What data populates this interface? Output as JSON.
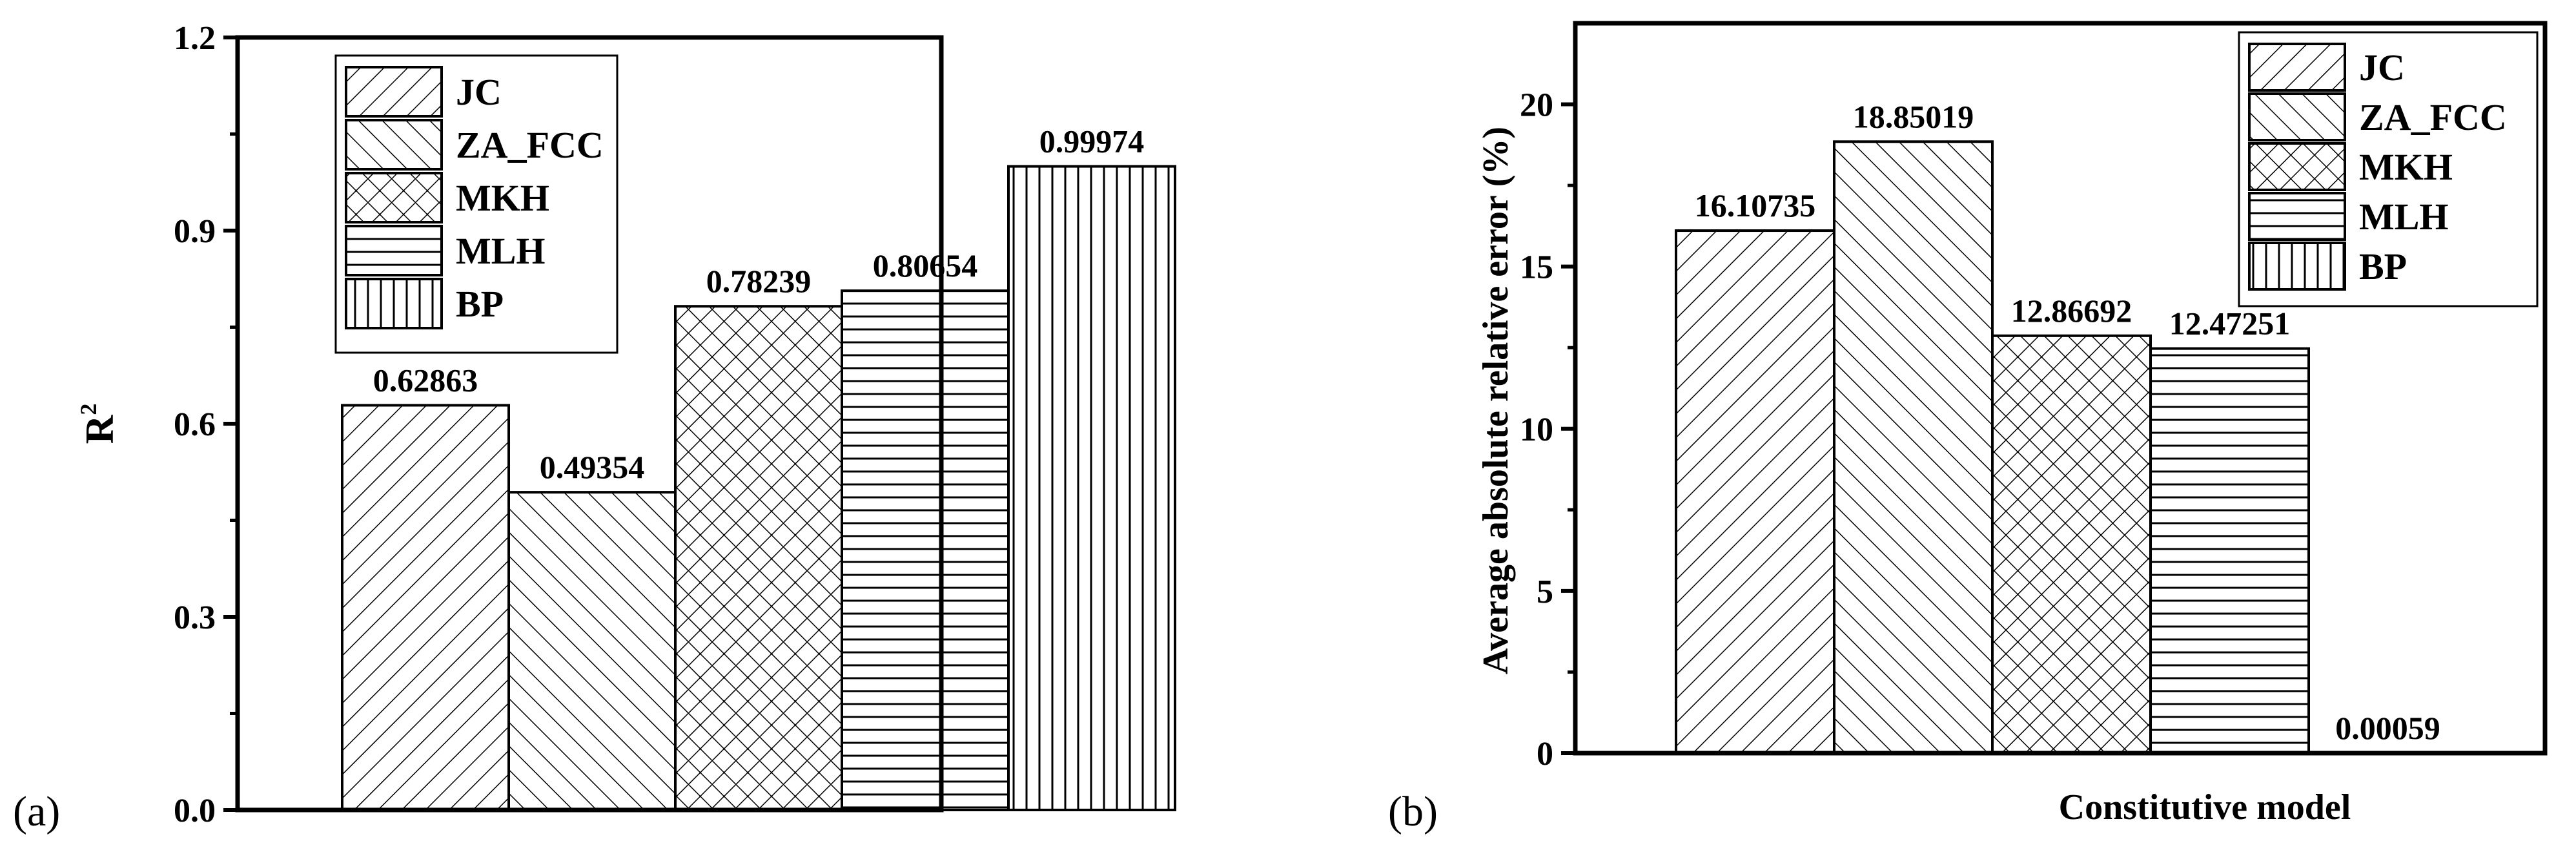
{
  "chart_data": [
    {
      "panel": "(a)",
      "type": "bar",
      "ylabel": "R",
      "ylabel_superscript": "2",
      "xlabel": "",
      "ylim": [
        0,
        1.2
      ],
      "yticks": [
        "0.0",
        "0.3",
        "0.6",
        "0.9",
        "1.2"
      ],
      "ytick_values": [
        0,
        0.3,
        0.6,
        0.9,
        1.2
      ],
      "categories": [
        "JC",
        "ZA_FCC",
        "MKH",
        "MLH",
        "BP"
      ],
      "values": [
        0.62863,
        0.49354,
        0.78239,
        0.80654,
        0.99974
      ],
      "data_labels": [
        "0.62863",
        "0.49354",
        "0.78239",
        "0.80654",
        "0.99974"
      ],
      "legend": [
        "JC",
        "ZA_FCC",
        "MKH",
        "MLH",
        "BP"
      ],
      "legend_position": "top-left",
      "patterns": [
        "diag-forward",
        "diag-back",
        "crosshatch",
        "horizontal",
        "vertical"
      ],
      "grid": false
    },
    {
      "panel": "(b)",
      "type": "bar",
      "ylabel": "Average absolute relative error (%)",
      "xlabel": "Constitutive model",
      "ylim": [
        0,
        22.5
      ],
      "yticks": [
        "0",
        "5",
        "10",
        "15",
        "20"
      ],
      "ytick_values": [
        0,
        5,
        10,
        15,
        20
      ],
      "categories": [
        "JC",
        "ZA_FCC",
        "MKH",
        "MLH",
        "BP"
      ],
      "values": [
        16.10735,
        18.85019,
        12.86692,
        12.47251,
        0.00059
      ],
      "data_labels": [
        "16.10735",
        "18.85019",
        "12.86692",
        "12.47251",
        "0.00059"
      ],
      "legend": [
        "JC",
        "ZA_FCC",
        "MKH",
        "MLH",
        "BP"
      ],
      "legend_position": "top-right",
      "patterns": [
        "diag-forward",
        "diag-back",
        "crosshatch",
        "horizontal",
        "vertical"
      ],
      "grid": false
    }
  ]
}
